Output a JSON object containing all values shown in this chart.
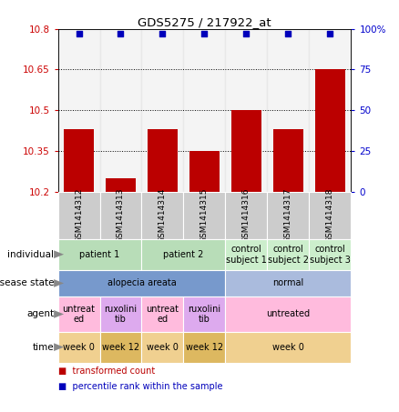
{
  "title": "GDS5275 / 217922_at",
  "samples": [
    "GSM1414312",
    "GSM1414313",
    "GSM1414314",
    "GSM1414315",
    "GSM1414316",
    "GSM1414317",
    "GSM1414318"
  ],
  "bar_values": [
    10.43,
    10.25,
    10.43,
    10.35,
    10.5,
    10.43,
    10.65
  ],
  "blue_values": [
    97,
    97,
    97,
    97,
    97,
    97,
    97
  ],
  "ylim_left": [
    10.2,
    10.8
  ],
  "ylim_right": [
    0,
    100
  ],
  "yticks_left": [
    10.2,
    10.35,
    10.5,
    10.65,
    10.8
  ],
  "ytick_labels_left": [
    "10.2",
    "10.35",
    "10.5",
    "10.65",
    "10.8"
  ],
  "yticks_right": [
    0,
    25,
    50,
    75,
    100
  ],
  "ytick_labels_right": [
    "0",
    "25",
    "50",
    "75",
    "100%"
  ],
  "hlines": [
    10.35,
    10.5,
    10.65
  ],
  "bar_color": "#bb0000",
  "blue_color": "#0000bb",
  "bar_width": 0.7,
  "sample_cell_color": "#cccccc",
  "table_rows": [
    {
      "label": "individual",
      "cells": [
        {
          "text": "patient 1",
          "span": 2,
          "color": "#b8ddb8"
        },
        {
          "text": "patient 2",
          "span": 2,
          "color": "#b8ddb8"
        },
        {
          "text": "control\nsubject 1",
          "span": 1,
          "color": "#cceecc"
        },
        {
          "text": "control\nsubject 2",
          "span": 1,
          "color": "#cceecc"
        },
        {
          "text": "control\nsubject 3",
          "span": 1,
          "color": "#cceecc"
        }
      ]
    },
    {
      "label": "disease state",
      "cells": [
        {
          "text": "alopecia areata",
          "span": 4,
          "color": "#7799cc"
        },
        {
          "text": "normal",
          "span": 3,
          "color": "#aabbdd"
        }
      ]
    },
    {
      "label": "agent",
      "cells": [
        {
          "text": "untreat\ned",
          "span": 1,
          "color": "#ffbbdd"
        },
        {
          "text": "ruxolini\ntib",
          "span": 1,
          "color": "#ddaaee"
        },
        {
          "text": "untreat\ned",
          "span": 1,
          "color": "#ffbbdd"
        },
        {
          "text": "ruxolini\ntib",
          "span": 1,
          "color": "#ddaaee"
        },
        {
          "text": "untreated",
          "span": 3,
          "color": "#ffbbdd"
        }
      ]
    },
    {
      "label": "time",
      "cells": [
        {
          "text": "week 0",
          "span": 1,
          "color": "#f0d090"
        },
        {
          "text": "week 12",
          "span": 1,
          "color": "#ddb860"
        },
        {
          "text": "week 0",
          "span": 1,
          "color": "#f0d090"
        },
        {
          "text": "week 12",
          "span": 1,
          "color": "#ddb860"
        },
        {
          "text": "week 0",
          "span": 3,
          "color": "#f0d090"
        }
      ]
    }
  ],
  "legend_items": [
    {
      "color": "#bb0000",
      "label": "transformed count"
    },
    {
      "color": "#0000bb",
      "label": "percentile rank within the sample"
    }
  ],
  "left_color": "#cc0000",
  "right_color": "#0000cc",
  "n_samples": 7
}
